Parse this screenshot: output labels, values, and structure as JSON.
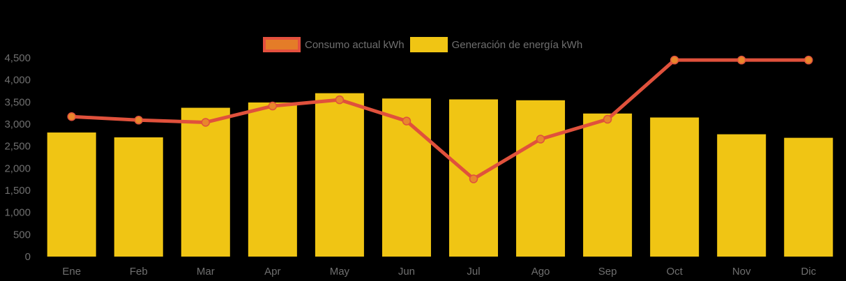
{
  "background_color": "#000000",
  "legend": {
    "items": [
      {
        "label": "Consumo actual kWh",
        "swatch_fill": "#E47C28",
        "swatch_border": "#E4503E"
      },
      {
        "label": "Generación de energía kWh",
        "swatch_fill": "#F0C514",
        "swatch_border": ""
      }
    ]
  },
  "chart_data": {
    "type": "bar",
    "title": "",
    "xlabel": "",
    "ylabel": "",
    "categories": [
      "Ene",
      "Feb",
      "Mar",
      "Apr",
      "May",
      "Jun",
      "Jul",
      "Ago",
      "Sep",
      "Oct",
      "Nov",
      "Dic"
    ],
    "series": [
      {
        "name": "Consumo actual kWh",
        "type": "line",
        "color": "#E0513C",
        "marker_color": "#E8872B",
        "values": [
          3170,
          3090,
          3040,
          3410,
          3550,
          3070,
          1760,
          2660,
          3110,
          4450,
          4450,
          4450
        ]
      },
      {
        "name": "Generación de energía kWh",
        "type": "bar",
        "color": "#F0C514",
        "values": [
          2810,
          2700,
          3370,
          3490,
          3700,
          3580,
          3560,
          3540,
          3240,
          3150,
          2770,
          2690
        ]
      }
    ],
    "ylim": [
      0,
      4500
    ],
    "ytick_step": 500,
    "ytick_labels": [
      "0",
      "500",
      "1,000",
      "1,500",
      "2,000",
      "2,500",
      "3,000",
      "3,500",
      "4,000",
      "4,500"
    ],
    "grid": false,
    "legend_position": "top",
    "axis_label_color": "#6F6F6F"
  }
}
